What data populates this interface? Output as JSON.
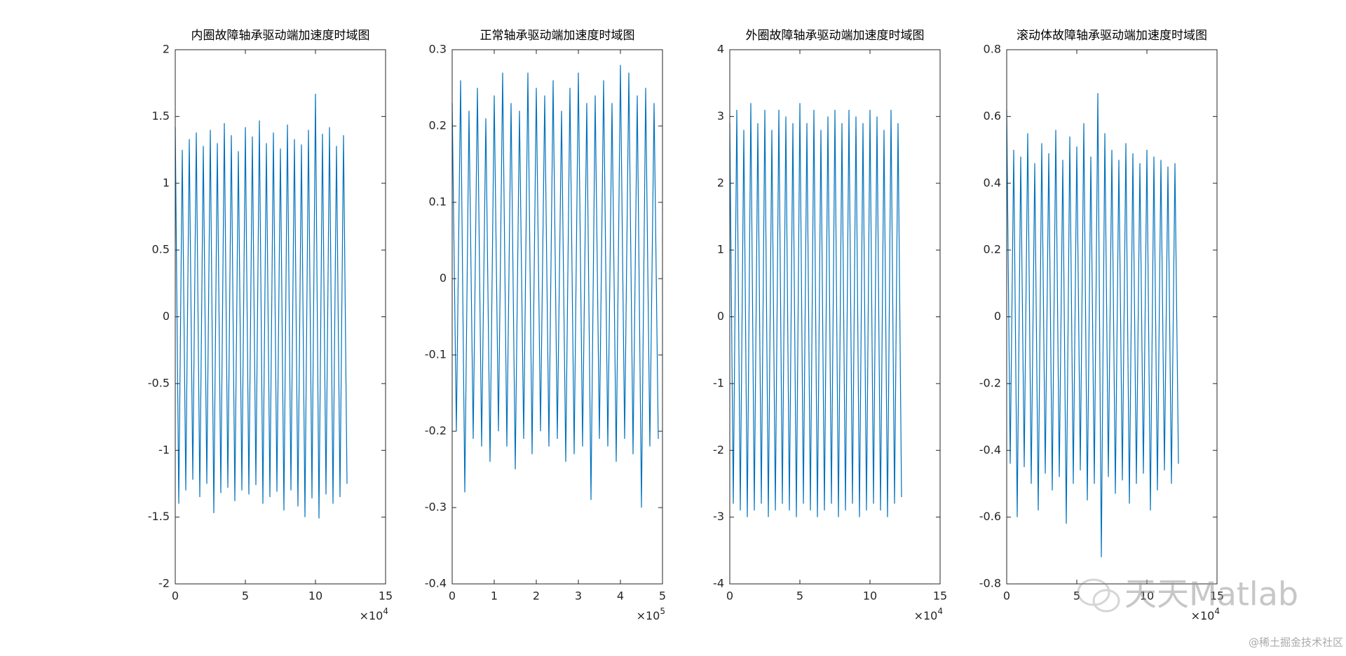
{
  "chart_data": [
    {
      "type": "line",
      "title": "内圈故障轴承驱动端加速度时域图",
      "x": [
        0,
        0.25,
        0.5,
        0.75,
        1,
        1.25,
        1.5,
        1.75,
        2,
        2.25,
        2.5,
        2.75,
        3,
        3.25,
        3.5,
        3.75,
        4,
        4.25,
        4.5,
        4.75,
        5,
        5.25,
        5.5,
        5.75,
        6,
        6.25,
        6.5,
        6.75,
        7,
        7.25,
        7.5,
        7.75,
        8,
        8.25,
        8.5,
        8.75,
        9,
        9.25,
        9.5,
        9.75,
        10,
        10.25,
        10.5,
        10.75,
        11,
        11.25,
        11.5,
        11.75,
        12,
        12.25
      ],
      "series": [
        {
          "color": "#0072bd",
          "values": [
            1.42,
            -1.4,
            1.25,
            -1.3,
            1.33,
            -1.22,
            1.38,
            -1.35,
            1.28,
            -1.25,
            1.4,
            -1.47,
            1.3,
            -1.32,
            1.45,
            -1.28,
            1.36,
            -1.38,
            1.24,
            -1.3,
            1.42,
            -1.33,
            1.35,
            -1.26,
            1.47,
            -1.4,
            1.3,
            -1.35,
            1.38,
            -1.31,
            1.26,
            -1.45,
            1.44,
            -1.3,
            1.33,
            -1.42,
            1.29,
            -1.5,
            1.4,
            -1.36,
            1.67,
            -1.51,
            1.37,
            -1.33,
            1.42,
            -1.4,
            1.28,
            -1.35,
            1.36,
            -1.25
          ]
        }
      ],
      "xlim": [
        0,
        15
      ],
      "xticks": [
        0,
        5,
        10,
        15
      ],
      "x_multiplier": {
        "base": "×10",
        "exponent": "4"
      },
      "ylim": [
        -2,
        2
      ],
      "yticks": [
        -2,
        -1.5,
        -1,
        -0.5,
        0,
        0.5,
        1,
        1.5,
        2
      ]
    },
    {
      "type": "line",
      "title": "正常轴承驱动端加速度时域图",
      "x": [
        0,
        0.1,
        0.2,
        0.3,
        0.4,
        0.5,
        0.6,
        0.7,
        0.8,
        0.9,
        1,
        1.1,
        1.2,
        1.3,
        1.4,
        1.5,
        1.6,
        1.7,
        1.8,
        1.9,
        2,
        2.1,
        2.2,
        2.3,
        2.4,
        2.5,
        2.6,
        2.7,
        2.8,
        2.9,
        3,
        3.1,
        3.2,
        3.3,
        3.4,
        3.5,
        3.6,
        3.7,
        3.8,
        3.9,
        4,
        4.1,
        4.2,
        4.3,
        4.4,
        4.5,
        4.6,
        4.7,
        4.8,
        4.9
      ],
      "series": [
        {
          "color": "#0072bd",
          "values": [
            0.23,
            -0.2,
            0.26,
            -0.28,
            0.22,
            -0.21,
            0.25,
            -0.22,
            0.21,
            -0.24,
            0.24,
            -0.2,
            0.27,
            -0.22,
            0.23,
            -0.25,
            0.22,
            -0.21,
            0.27,
            -0.23,
            0.25,
            -0.2,
            0.24,
            -0.22,
            0.26,
            -0.21,
            0.22,
            -0.24,
            0.25,
            -0.23,
            0.27,
            -0.22,
            0.23,
            -0.29,
            0.24,
            -0.21,
            0.26,
            -0.22,
            0.23,
            -0.24,
            0.28,
            -0.21,
            0.27,
            -0.23,
            0.24,
            -0.3,
            0.25,
            -0.22,
            0.23,
            -0.21
          ]
        }
      ],
      "xlim": [
        0,
        5
      ],
      "xticks": [
        0,
        1,
        2,
        3,
        4,
        5
      ],
      "x_multiplier": {
        "base": "×10",
        "exponent": "5"
      },
      "ylim": [
        -0.4,
        0.3
      ],
      "yticks": [
        -0.4,
        -0.3,
        -0.2,
        -0.1,
        0,
        0.1,
        0.2,
        0.3
      ]
    },
    {
      "type": "line",
      "title": "外圈故障轴承驱动端加速度时域图",
      "x": [
        0,
        0.25,
        0.5,
        0.75,
        1,
        1.25,
        1.5,
        1.75,
        2,
        2.25,
        2.5,
        2.75,
        3,
        3.25,
        3.5,
        3.75,
        4,
        4.25,
        4.5,
        4.75,
        5,
        5.25,
        5.5,
        5.75,
        6,
        6.25,
        6.5,
        6.75,
        7,
        7.25,
        7.5,
        7.75,
        8,
        8.25,
        8.5,
        8.75,
        9,
        9.25,
        9.5,
        9.75,
        10,
        10.25,
        10.5,
        10.75,
        11,
        11.25,
        11.5,
        11.75,
        12,
        12.25
      ],
      "series": [
        {
          "color": "#0072bd",
          "values": [
            2.9,
            -2.8,
            3.1,
            -2.9,
            2.8,
            -3.0,
            3.2,
            -2.9,
            2.9,
            -2.8,
            3.1,
            -3.0,
            2.8,
            -2.9,
            3.1,
            -2.8,
            3.0,
            -2.9,
            2.9,
            -3.0,
            3.2,
            -2.8,
            2.9,
            -2.9,
            3.1,
            -3.0,
            2.8,
            -2.9,
            3.0,
            -2.8,
            3.1,
            -3.0,
            2.9,
            -2.9,
            3.1,
            -2.8,
            3.0,
            -3.0,
            2.9,
            -2.9,
            3.1,
            -2.8,
            3.0,
            -2.9,
            2.8,
            -3.0,
            3.1,
            -2.8,
            2.9,
            -2.7
          ]
        }
      ],
      "xlim": [
        0,
        15
      ],
      "xticks": [
        0,
        5,
        10,
        15
      ],
      "x_multiplier": {
        "base": "×10",
        "exponent": "4"
      },
      "ylim": [
        -4,
        4
      ],
      "yticks": [
        -4,
        -3,
        -2,
        -1,
        0,
        1,
        2,
        3,
        4
      ]
    },
    {
      "type": "line",
      "title": "滚动体故障轴承驱动端加速度时域图",
      "x": [
        0,
        0.25,
        0.5,
        0.75,
        1,
        1.25,
        1.5,
        1.75,
        2,
        2.25,
        2.5,
        2.75,
        3,
        3.25,
        3.5,
        3.75,
        4,
        4.25,
        4.5,
        4.75,
        5,
        5.25,
        5.5,
        5.75,
        6,
        6.25,
        6.5,
        6.75,
        7,
        7.25,
        7.5,
        7.75,
        8,
        8.25,
        8.5,
        8.75,
        9,
        9.25,
        9.5,
        9.75,
        10,
        10.25,
        10.5,
        10.75,
        11,
        11.25,
        11.5,
        11.75,
        12,
        12.25
      ],
      "series": [
        {
          "color": "#0072bd",
          "values": [
            0.62,
            -0.44,
            0.5,
            -0.6,
            0.48,
            -0.45,
            0.55,
            -0.5,
            0.46,
            -0.58,
            0.52,
            -0.47,
            0.49,
            -0.52,
            0.56,
            -0.48,
            0.47,
            -0.62,
            0.54,
            -0.5,
            0.51,
            -0.46,
            0.58,
            -0.55,
            0.48,
            -0.5,
            0.67,
            -0.72,
            0.55,
            -0.48,
            0.5,
            -0.53,
            0.47,
            -0.49,
            0.52,
            -0.56,
            0.49,
            -0.5,
            0.46,
            -0.47,
            0.5,
            -0.58,
            0.48,
            -0.52,
            0.47,
            -0.46,
            0.45,
            -0.5,
            0.46,
            -0.44
          ]
        }
      ],
      "xlim": [
        0,
        15
      ],
      "xticks": [
        0,
        5,
        10,
        15
      ],
      "x_multiplier": {
        "base": "×10",
        "exponent": "4"
      },
      "ylim": [
        -0.8,
        0.8
      ],
      "yticks": [
        -0.8,
        -0.6,
        -0.4,
        -0.2,
        0,
        0.2,
        0.4,
        0.6,
        0.8
      ]
    }
  ],
  "watermark": {
    "logo_text": "天天Matlab",
    "site": "@稀土掘金技术社区"
  }
}
